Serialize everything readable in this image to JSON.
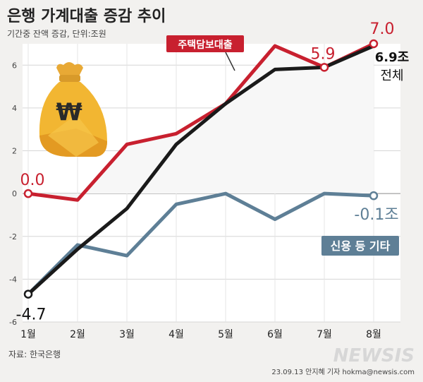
{
  "chart_data": {
    "type": "line",
    "title": "은행 가계대출 증감 추이",
    "subtitle": "기간중 잔액 증감, 단위:조원",
    "categories": [
      "1월",
      "2월",
      "3월",
      "4월",
      "5월",
      "6월",
      "7월",
      "8월"
    ],
    "ylim": [
      -6,
      7
    ],
    "yticks": [
      -6,
      -4,
      -2,
      0,
      2,
      4,
      6
    ],
    "grid": true,
    "series": [
      {
        "name": "주택담보대출",
        "color": "#c8202f",
        "values": [
          0.0,
          -0.3,
          2.3,
          2.8,
          4.2,
          6.9,
          5.9,
          7.0
        ],
        "end_label": "7.0",
        "start_label": "0.0",
        "mid_label": "5.9"
      },
      {
        "name": "전체",
        "color": "#1a1a1a",
        "values": [
          -4.7,
          -2.6,
          -0.7,
          2.3,
          4.2,
          5.8,
          5.9,
          6.9
        ],
        "end_value_label": "6.9조",
        "start_label": "-4.7"
      },
      {
        "name": "신용 등 기타",
        "color": "#5e7f96",
        "values": [
          -4.7,
          -2.4,
          -2.9,
          -0.5,
          0.0,
          -1.2,
          0.0,
          -0.1
        ],
        "end_label": "-0.1조"
      }
    ],
    "source": "자료: 한국은행",
    "credit": "23.09.13 안지혜 기자 hokma@newsis.com",
    "brand": "NEWSIS"
  }
}
